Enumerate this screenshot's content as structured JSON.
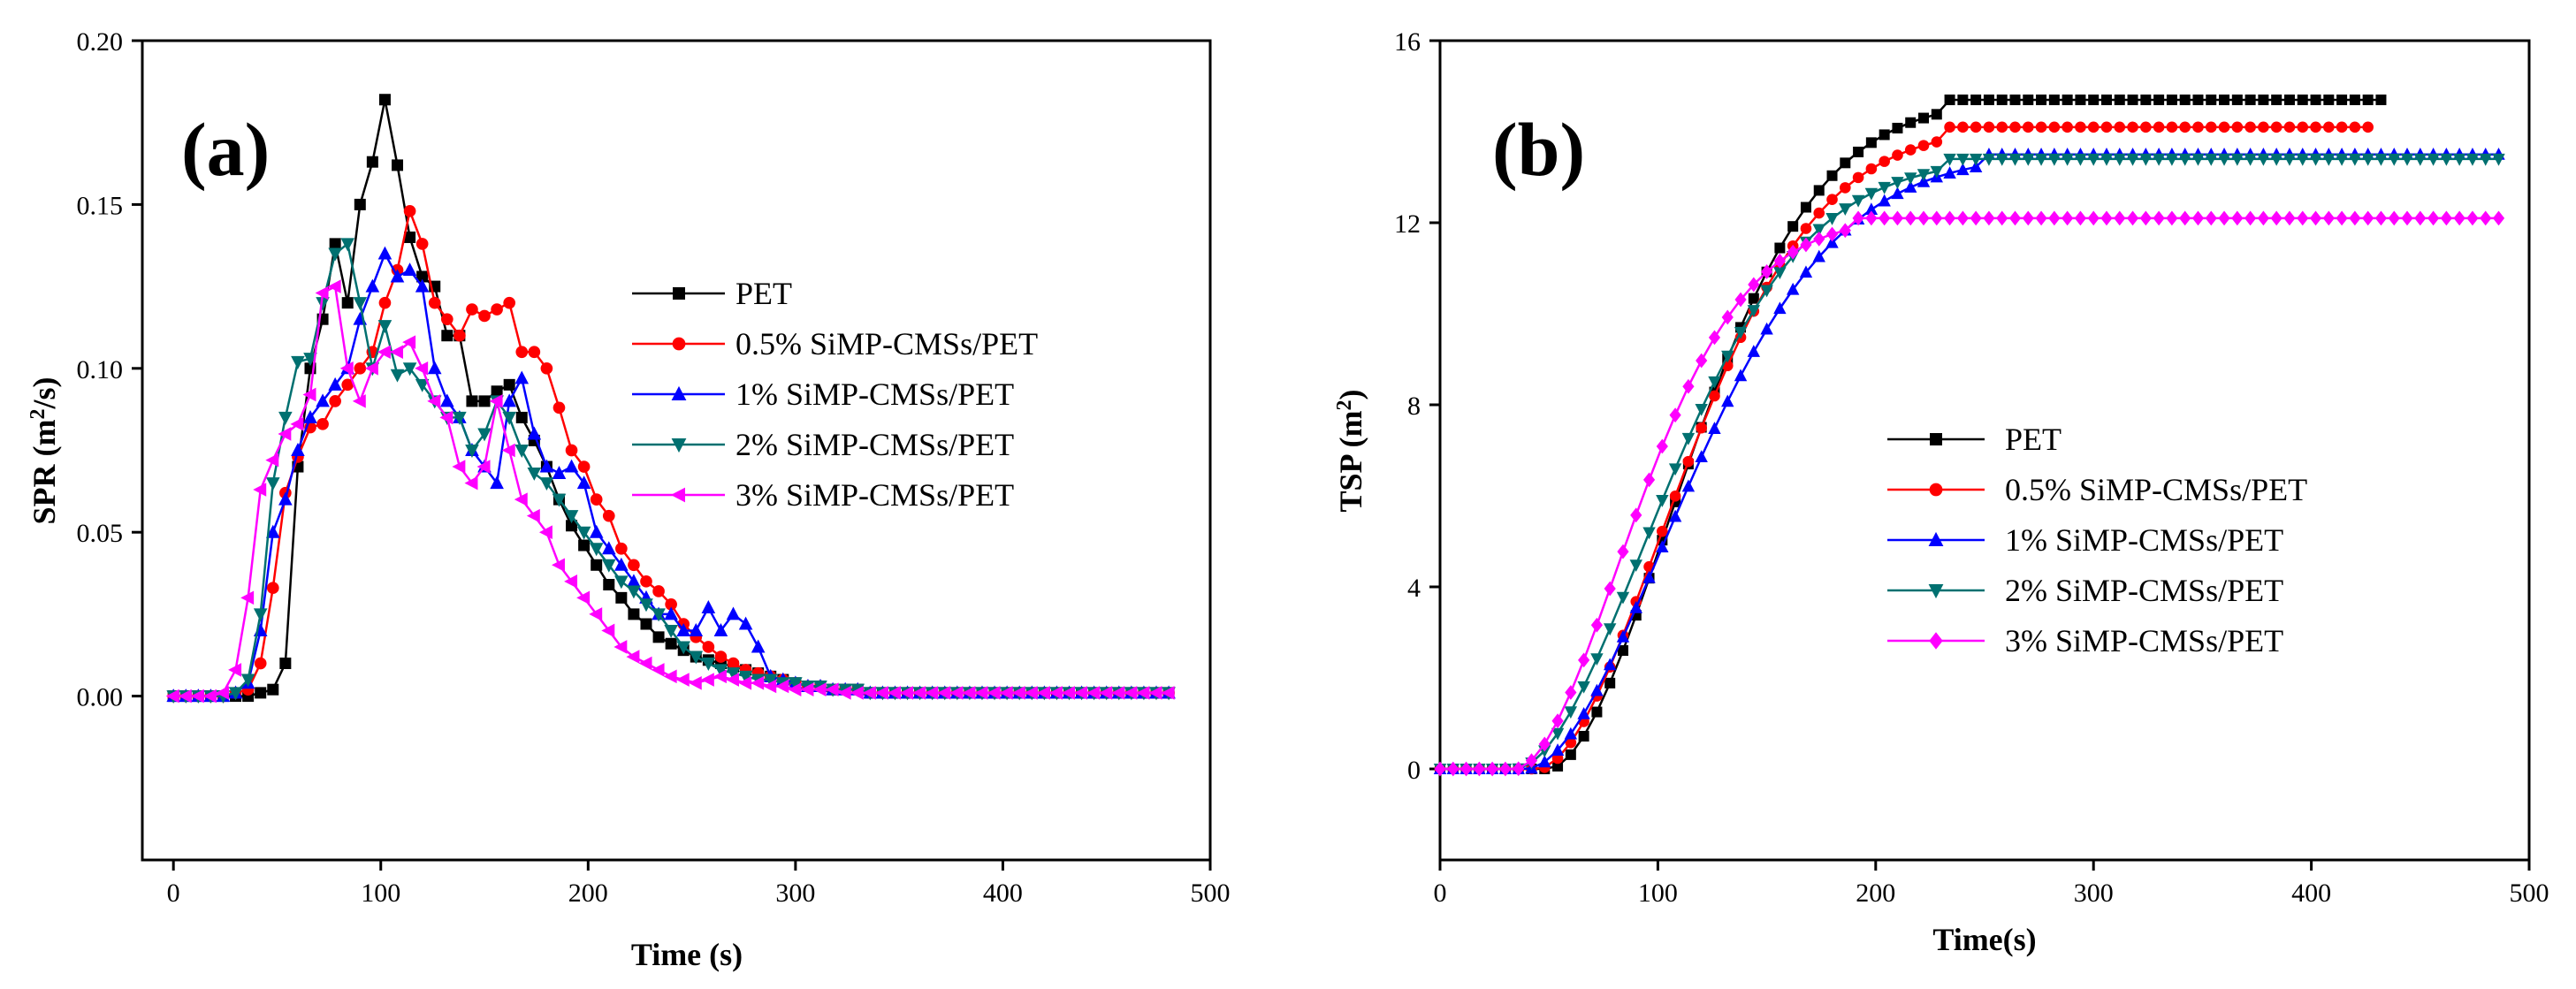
{
  "chart_data": [
    {
      "type": "line",
      "panel_label": "(a)",
      "xlabel": "Time (s)",
      "ylabel_main": "SPR (m",
      "ylabel_sup": "2",
      "ylabel_tail": "/s)",
      "xlim": [
        -15,
        500
      ],
      "ylim": [
        -0.05,
        0.2
      ],
      "xticks": [
        "0",
        "100",
        "200",
        "300",
        "400",
        "500"
      ],
      "xtick_values": [
        0,
        100,
        200,
        300,
        400,
        500
      ],
      "yticks": [
        "0.00",
        "0.05",
        "0.10",
        "0.15",
        "0.20"
      ],
      "ytick_values": [
        0,
        0.05,
        0.1,
        0.15,
        0.2
      ],
      "x_start": 0,
      "x_step": 6,
      "series": [
        {
          "name": "PET",
          "color": "#000000",
          "marker": "square",
          "values": [
            0,
            0,
            0,
            0,
            0,
            0,
            0,
            0.001,
            0.002,
            0.01,
            0.07,
            0.1,
            0.115,
            0.138,
            0.12,
            0.15,
            0.163,
            0.182,
            0.162,
            0.14,
            0.128,
            0.125,
            0.11,
            0.11,
            0.09,
            0.09,
            0.093,
            0.095,
            0.085,
            0.078,
            0.07,
            0.06,
            0.052,
            0.046,
            0.04,
            0.034,
            0.03,
            0.025,
            0.022,
            0.018,
            0.016,
            0.014,
            0.012,
            0.011,
            0.01,
            0.009,
            0.008,
            0.007,
            0.006,
            0.005,
            0.004,
            0.003,
            0.003,
            0.002,
            0.002,
            0.002,
            0.001,
            0.001,
            0.001,
            0.001,
            0.001,
            0.001,
            0.001,
            0.001,
            0.001,
            0.001,
            0.001,
            0.001,
            0.001,
            0.001,
            0.001,
            0.001,
            0.001,
            0.001,
            0.001,
            0.001,
            0.001,
            0.001,
            0.001,
            0.001,
            0.001
          ]
        },
        {
          "name": "0.5%  SiMP-CMSs/PET",
          "color": "#ff0000",
          "marker": "circle",
          "values": [
            0,
            0,
            0,
            0,
            0,
            0.001,
            0.002,
            0.01,
            0.033,
            0.062,
            0.073,
            0.082,
            0.083,
            0.09,
            0.095,
            0.1,
            0.105,
            0.12,
            0.13,
            0.148,
            0.138,
            0.12,
            0.115,
            0.11,
            0.118,
            0.116,
            0.118,
            0.12,
            0.105,
            0.105,
            0.1,
            0.088,
            0.075,
            0.07,
            0.06,
            0.055,
            0.045,
            0.04,
            0.035,
            0.032,
            0.028,
            0.022,
            0.018,
            0.015,
            0.012,
            0.01,
            0.008,
            0.007,
            0.006,
            0.005,
            0.004,
            0.003,
            0.003,
            0.002,
            0.002,
            0.002,
            0.001,
            0.001,
            0.001,
            0.001,
            0.001,
            0.001,
            0.001,
            0.001,
            0.001,
            0.001,
            0.001,
            0.001,
            0.001,
            0.001,
            0.001,
            0.001,
            0.001,
            0.001,
            0.001,
            0.001,
            0.001,
            0.001,
            0.001,
            0.001,
            0.001
          ]
        },
        {
          "name": "1%  SiMP-CMSs/PET",
          "color": "#0000ff",
          "marker": "triangle-up",
          "values": [
            0,
            0,
            0,
            0,
            0,
            0.001,
            0.004,
            0.02,
            0.05,
            0.06,
            0.075,
            0.085,
            0.09,
            0.095,
            0.1,
            0.115,
            0.125,
            0.135,
            0.128,
            0.13,
            0.125,
            0.1,
            0.09,
            0.085,
            0.075,
            0.07,
            0.065,
            0.09,
            0.097,
            0.08,
            0.07,
            0.068,
            0.07,
            0.065,
            0.05,
            0.045,
            0.04,
            0.035,
            0.03,
            0.025,
            0.025,
            0.02,
            0.02,
            0.027,
            0.02,
            0.025,
            0.022,
            0.015,
            0.006,
            0.005,
            0.004,
            0.003,
            0.003,
            0.002,
            0.002,
            0.002,
            0.001,
            0.001,
            0.001,
            0.001,
            0.001,
            0.001,
            0.001,
            0.001,
            0.001,
            0.001,
            0.001,
            0.001,
            0.001,
            0.001,
            0.001,
            0.001,
            0.001,
            0.001,
            0.001,
            0.001,
            0.001,
            0.001,
            0.001,
            0.001,
            0.001
          ]
        },
        {
          "name": "2%  SiMP-CMSs/PET",
          "color": "#007070",
          "marker": "triangle-down",
          "values": [
            0,
            0,
            0,
            0,
            0,
            0.001,
            0.005,
            0.025,
            0.065,
            0.085,
            0.102,
            0.103,
            0.12,
            0.135,
            0.138,
            0.12,
            0.1,
            0.113,
            0.098,
            0.1,
            0.095,
            0.09,
            0.085,
            0.085,
            0.075,
            0.08,
            0.09,
            0.085,
            0.075,
            0.068,
            0.065,
            0.06,
            0.055,
            0.05,
            0.045,
            0.04,
            0.035,
            0.032,
            0.028,
            0.025,
            0.02,
            0.015,
            0.012,
            0.01,
            0.008,
            0.007,
            0.006,
            0.005,
            0.005,
            0.004,
            0.004,
            0.003,
            0.003,
            0.002,
            0.002,
            0.002,
            0.001,
            0.001,
            0.001,
            0.001,
            0.001,
            0.001,
            0.001,
            0.001,
            0.001,
            0.001,
            0.001,
            0.001,
            0.001,
            0.001,
            0.001,
            0.001,
            0.001,
            0.001,
            0.001,
            0.001,
            0.001,
            0.001,
            0.001,
            0.001,
            0.001
          ]
        },
        {
          "name": "3%  SiMP-CMSs/PET",
          "color": "#ff00ff",
          "marker": "triangle-left",
          "values": [
            0,
            0,
            0,
            0,
            0.001,
            0.008,
            0.03,
            0.063,
            0.072,
            0.08,
            0.083,
            0.092,
            0.123,
            0.125,
            0.1,
            0.09,
            0.1,
            0.105,
            0.105,
            0.108,
            0.1,
            0.09,
            0.085,
            0.07,
            0.065,
            0.07,
            0.09,
            0.075,
            0.06,
            0.055,
            0.05,
            0.04,
            0.035,
            0.03,
            0.025,
            0.02,
            0.015,
            0.012,
            0.01,
            0.008,
            0.006,
            0.005,
            0.004,
            0.005,
            0.006,
            0.005,
            0.004,
            0.004,
            0.003,
            0.003,
            0.002,
            0.002,
            0.002,
            0.002,
            0.001,
            0.001,
            0.001,
            0.001,
            0.001,
            0.001,
            0.001,
            0.001,
            0.001,
            0.001,
            0.001,
            0.001,
            0.001,
            0.001,
            0.001,
            0.001,
            0.001,
            0.001,
            0.001,
            0.001,
            0.001,
            0.001,
            0.001,
            0.001,
            0.001,
            0.001,
            0.001
          ]
        }
      ]
    },
    {
      "type": "line",
      "panel_label": "(b)",
      "xlabel": "Time(s)",
      "ylabel_main": "TSP (m",
      "ylabel_sup": "2",
      "ylabel_tail": ")",
      "xlim": [
        0,
        500
      ],
      "ylim": [
        -2,
        16
      ],
      "xticks": [
        "0",
        "100",
        "200",
        "300",
        "400",
        "500"
      ],
      "xtick_values": [
        0,
        100,
        200,
        300,
        400,
        500
      ],
      "yticks": [
        "0",
        "4",
        "8",
        "12",
        "16"
      ],
      "ytick_values": [
        0,
        4,
        8,
        12,
        16
      ],
      "series": [
        {
          "name": "PET",
          "color": "#000000",
          "marker": "square",
          "final": 14.7,
          "onset": 50,
          "rise": 185,
          "end_x": 436
        },
        {
          "name": "0.5%  SiMP-CMSs/PET",
          "color": "#ff0000",
          "marker": "circle",
          "final": 14.1,
          "onset": 45,
          "rise": 185,
          "end_x": 430
        },
        {
          "name": "1%  SiMP-CMSs/PET",
          "color": "#0000ff",
          "marker": "triangle-up",
          "final": 13.5,
          "onset": 40,
          "rise": 195,
          "end_x": 490
        },
        {
          "name": "2% SiMP-CMSs/PET",
          "color": "#007070",
          "marker": "triangle-down",
          "final": 13.4,
          "onset": 35,
          "rise": 180,
          "end_x": 490
        },
        {
          "name": "3% SiMP-CMSs/PET",
          "color": "#ff00ff",
          "marker": "diamond",
          "final": 12.1,
          "onset": 35,
          "rise": 150,
          "end_x": 490
        }
      ]
    }
  ]
}
